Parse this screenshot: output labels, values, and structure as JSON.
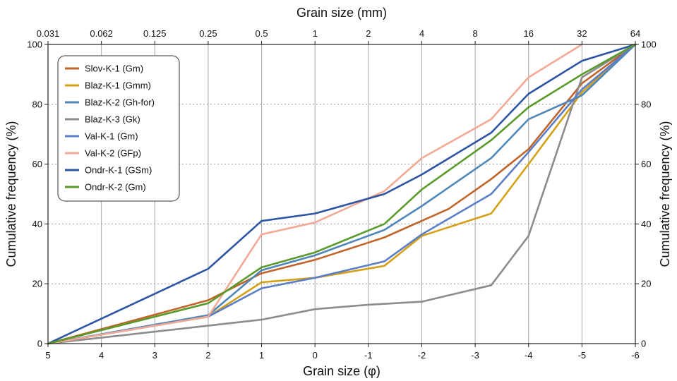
{
  "chart_data": {
    "type": "line",
    "top_xlabel": "Grain size (mm)",
    "xlabel": "Grain size (φ)",
    "ylabel": "Cumulative frequency (%)",
    "ylabel_right": "Cumulative frequency (%)",
    "xlim": [
      5,
      -6
    ],
    "ylim": [
      0,
      100
    ],
    "x_ticks": [
      5,
      4,
      3,
      2,
      1,
      0,
      -1,
      -2,
      -3,
      -4,
      -5,
      -6
    ],
    "x_tick_labels": [
      "5",
      "4",
      "3",
      "2",
      "1",
      "0",
      "-1",
      "-2",
      "-3",
      "-4",
      "-5",
      "-6"
    ],
    "top_tick_labels": [
      "0.031",
      "0.062",
      "0.125",
      "0.25",
      "0.5",
      "1",
      "2",
      "4",
      "8",
      "16",
      "32",
      "64"
    ],
    "y_ticks": [
      0,
      20,
      40,
      60,
      80,
      100
    ],
    "y_tick_labels": [
      "0",
      "20",
      "40",
      "60",
      "80",
      "100"
    ],
    "grid": "vertical solid at each phi; horizontal dotted at 20, 40, 60, 80",
    "legend_position": "top-left",
    "series": [
      {
        "name": "Slov-K-1 (Gm)",
        "color": "#c0642a",
        "x": [
          5,
          2,
          1,
          0,
          -1.3,
          -2.5,
          -3.3,
          -4,
          -5,
          -6
        ],
        "y": [
          0,
          14.5,
          23.5,
          28,
          35.5,
          45,
          55,
          65,
          87,
          100
        ]
      },
      {
        "name": "Blaz-K-1 (Gmm)",
        "color": "#d4a017",
        "x": [
          5,
          2,
          1,
          0,
          -1.3,
          -2,
          -3.3,
          -4,
          -5,
          -6
        ],
        "y": [
          0,
          9,
          20.5,
          22,
          26,
          36,
          43.5,
          60,
          84,
          100
        ]
      },
      {
        "name": "Blaz-K-2 (Gh-for)",
        "color": "#4f87b8",
        "x": [
          5,
          2,
          1,
          0,
          -1.3,
          -2,
          -3.3,
          -4,
          -5,
          -6
        ],
        "y": [
          0,
          9.5,
          24.5,
          29.5,
          38,
          46,
          62,
          75,
          83,
          100
        ]
      },
      {
        "name": "Blaz-K-3 (Gk)",
        "color": "#8c8c8c",
        "x": [
          5,
          2,
          1,
          0,
          -1,
          -2,
          -3.3,
          -4,
          -5,
          -6
        ],
        "y": [
          0,
          6,
          8,
          11.5,
          13,
          14,
          19.5,
          36,
          89,
          100
        ]
      },
      {
        "name": "Val-K-1 (Gm)",
        "color": "#5b7fc7",
        "x": [
          5,
          2,
          1,
          0,
          -1.3,
          -2,
          -3.3,
          -4,
          -5,
          -6
        ],
        "y": [
          0,
          9,
          18.5,
          22,
          27.5,
          36.5,
          50,
          64,
          85,
          100
        ]
      },
      {
        "name": "Val-K-2 (GFp)",
        "color": "#f2a995",
        "x": [
          5,
          2,
          1,
          0,
          -1.3,
          -2,
          -3.3,
          -4,
          -5
        ],
        "y": [
          0,
          9,
          36.5,
          40.5,
          51,
          62,
          75,
          89,
          100
        ]
      },
      {
        "name": "Ondr-K-1 (GSm)",
        "color": "#2d55a3",
        "x": [
          5,
          2,
          1,
          0,
          -1.3,
          -2,
          -3.3,
          -4,
          -5,
          -6
        ],
        "y": [
          0,
          25,
          41,
          43.5,
          50,
          56.5,
          70.5,
          83.5,
          94.5,
          100
        ]
      },
      {
        "name": "Ondr-K-2 (Gm)",
        "color": "#5a9a2a",
        "x": [
          5,
          2,
          1,
          0,
          -1.3,
          -2,
          -3.3,
          -4,
          -5,
          -6
        ],
        "y": [
          0,
          13.5,
          25.5,
          30.5,
          40,
          51.5,
          68,
          79,
          90,
          100
        ]
      }
    ]
  }
}
